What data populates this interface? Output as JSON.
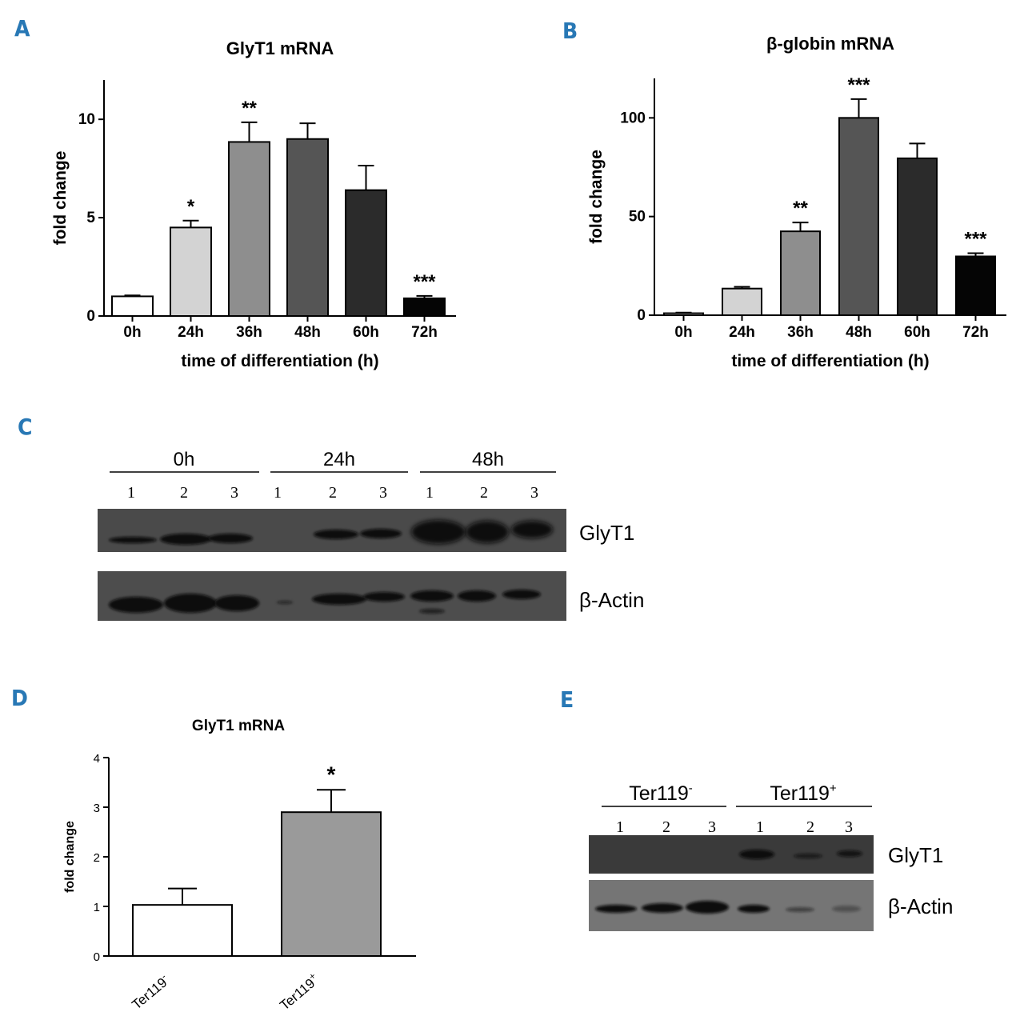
{
  "colors": {
    "panel_letter": "#2878b5",
    "axis": "#000000",
    "blot_bg": "#4a4a4a",
    "band": "#0a0a0a"
  },
  "panels": {
    "A": "A",
    "B": "B",
    "C": "C",
    "D": "D",
    "E": "E"
  },
  "chart_data": [
    {
      "id": "A",
      "type": "bar",
      "title": "GlyT1 mRNA",
      "xlabel": "time of differentiation (h)",
      "ylabel": "fold change",
      "categories": [
        "0h",
        "24h",
        "36h",
        "48h",
        "60h",
        "72h"
      ],
      "values": [
        1.0,
        4.5,
        8.85,
        9.0,
        6.4,
        0.9
      ],
      "errors": [
        0.05,
        0.35,
        1.0,
        0.8,
        1.25,
        0.12
      ],
      "significance": [
        "",
        "*",
        "**",
        "",
        "",
        "***"
      ],
      "bar_colors": [
        "#ffffff",
        "#d3d3d3",
        "#8e8e8e",
        "#555555",
        "#2b2b2b",
        "#050505"
      ],
      "ylim": [
        0,
        12
      ],
      "yticks": [
        0,
        5,
        10
      ],
      "ytick_labels": [
        "0",
        "5",
        "10"
      ]
    },
    {
      "id": "B",
      "type": "bar",
      "title": "β-globin mRNA",
      "xlabel": "time of differentiation (h)",
      "ylabel": "fold change",
      "categories": [
        "0h",
        "24h",
        "36h",
        "48h",
        "60h",
        "72h"
      ],
      "values": [
        1.0,
        13.5,
        42.5,
        100.0,
        79.5,
        29.8
      ],
      "errors": [
        0.3,
        0.9,
        4.5,
        9.5,
        7.5,
        1.6
      ],
      "significance": [
        "",
        "",
        "**",
        "***",
        "",
        "***"
      ],
      "bar_colors": [
        "#ffffff",
        "#d3d3d3",
        "#8e8e8e",
        "#555555",
        "#2b2b2b",
        "#050505"
      ],
      "ylim": [
        0,
        120
      ],
      "yticks": [
        0,
        50,
        100
      ],
      "ytick_labels": [
        "0",
        "50",
        "100"
      ]
    },
    {
      "id": "D",
      "type": "bar",
      "title": "GlyT1 mRNA",
      "xlabel": "",
      "ylabel": "fold change",
      "categories": [
        "Ter119",
        "Ter119"
      ],
      "category_superscripts": [
        "-",
        "+"
      ],
      "values": [
        1.03,
        2.9
      ],
      "errors": [
        0.33,
        0.45
      ],
      "significance": [
        "",
        "*"
      ],
      "bar_colors": [
        "#ffffff",
        "#9a9a9a"
      ],
      "ylim": [
        0,
        4
      ],
      "yticks": [
        0,
        1,
        2,
        3,
        4
      ],
      "ytick_labels": [
        "0",
        "1",
        "2",
        "3",
        "4"
      ]
    }
  ],
  "blot_c": {
    "groups": [
      "0h",
      "24h",
      "48h"
    ],
    "lanes": [
      "1",
      "2",
      "3",
      "1",
      "2",
      "3",
      "1",
      "2",
      "3"
    ],
    "rows": [
      "GlyT1",
      "β-Actin"
    ]
  },
  "blot_e": {
    "groups": [
      "Ter119",
      "Ter119"
    ],
    "group_superscripts": [
      "-",
      "+"
    ],
    "lanes": [
      "1",
      "2",
      "3",
      "1",
      "2",
      "3"
    ],
    "rows": [
      "GlyT1",
      "β-Actin"
    ]
  }
}
